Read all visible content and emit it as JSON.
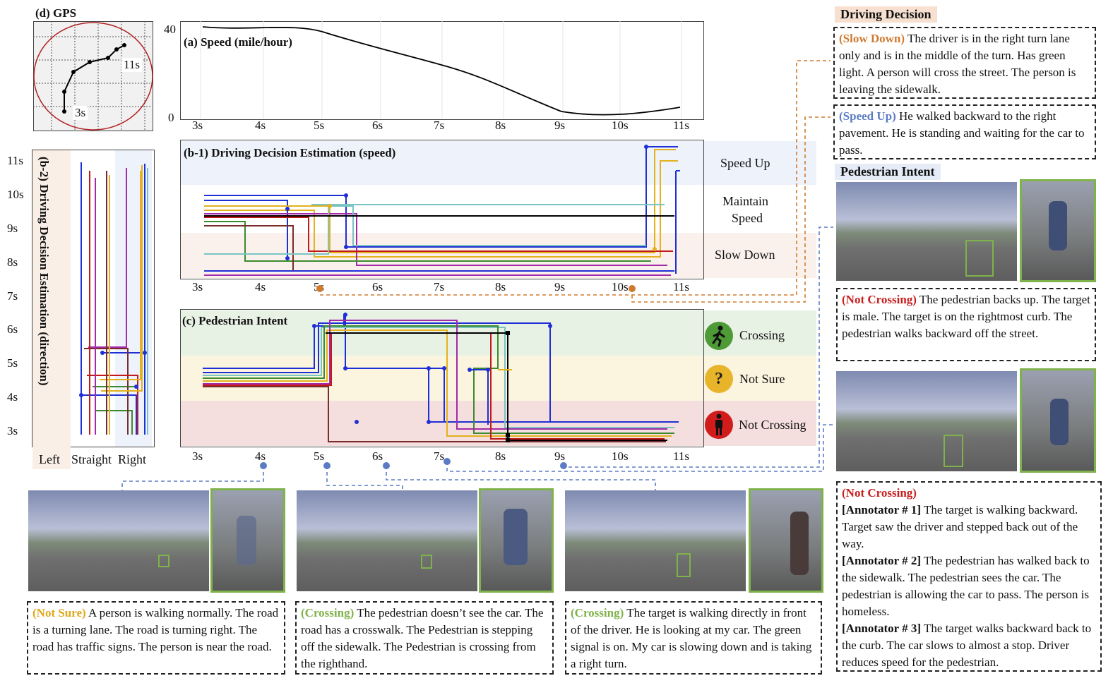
{
  "gps": {
    "title": "(d)  GPS",
    "start": "3s",
    "end": "11s"
  },
  "speed": {
    "title": "(a)  Speed (mile/hour)",
    "ytop": "40",
    "ybottom": "0"
  },
  "time_ticks": [
    "3s",
    "4s",
    "5s",
    "6s",
    "7s",
    "8s",
    "9s",
    "10s",
    "11s"
  ],
  "b1": {
    "title": "(b-1)  Driving Decision Estimation (speed)",
    "labels": {
      "up": "Speed Up",
      "maintain_1": "Maintain",
      "maintain_2": "Speed",
      "down": "Slow Down"
    }
  },
  "b2": {
    "title": "(b-2)  Driving Decision Estimation (direction)",
    "yticks": [
      "11s",
      "10s",
      "9s",
      "8s",
      "7s",
      "6s",
      "5s",
      "4s",
      "3s"
    ],
    "xlabels": [
      "Left",
      "Straight",
      "Right"
    ]
  },
  "c": {
    "title": "(c) Pedestrian Intent",
    "legend": {
      "crossing": "Crossing",
      "not_sure": "Not Sure",
      "not_crossing": "Not Crossing",
      "q": "?"
    }
  },
  "right": {
    "driving_header": "Driving Decision",
    "box1": {
      "tag": "(Slow Down)",
      "text": " The driver is in the right turn lane only and is in the middle of the turn. Has green light. A person will cross the street. The person is leaving the sidewalk."
    },
    "box2": {
      "tag": "(Speed Up)",
      "text": " He walked backward to the right pavement. He is standing and waiting for the car to pass."
    },
    "ped_header": "Pedestrian Intent",
    "box3": {
      "tag": "(Not Crossing)",
      "text": " The pedestrian backs up. The target is male. The target is on the rightmost curb. The pedestrian walks backward off the street."
    },
    "box4": {
      "tag": "(Not Crossing)",
      "a1": "[Annotator # 1]",
      "t1": " The target is walking backward. Target saw the driver and stepped back out of the way.",
      "a2": "[Annotator # 2]",
      "t2": " The pedestrian has walked back to the sidewalk. The pedestrian sees the car. The pedestrian is allowing the car to pass. The person is homeless.",
      "a3": "[Annotator # 3]",
      "t3": " The target walks backward back to the curb. The car slows to almost a stop. Driver reduces speed for the pedestrian."
    }
  },
  "bottom": {
    "cap1": {
      "tag": "(Not Sure)",
      "text": " A person is walking normally. The road is a turning lane. The road is turning right. The road has traffic signs. The person is near the road."
    },
    "cap2": {
      "tag": "(Crossing)",
      "text": " The pedestrian doesn’t see the car. The road has a crosswalk.  The Pedestrian is stepping off the sidewalk. The Pedestrian is crossing from the righthand."
    },
    "cap3": {
      "tag": "(Crossing)",
      "text": " The target is walking directly in front of the driver. He is looking at my car. The green signal is on. My car is slowing down and is taking a right turn."
    }
  },
  "colors": {
    "orange": "#d07a2f",
    "blue": "#5b7cc4",
    "green": "#7fb24a",
    "red": "#c81e1e",
    "yellow": "#e0a81c",
    "crossing_bg": "#e8f2e4",
    "notsure_bg": "#fbf4df",
    "notcross_bg": "#f4dede",
    "up_bg": "#eef2fa",
    "down_bg": "#fbf1ec"
  },
  "icons": {
    "crossing": "walking-person-icon",
    "not_sure": "question-icon",
    "not_crossing": "standing-person-icon"
  }
}
